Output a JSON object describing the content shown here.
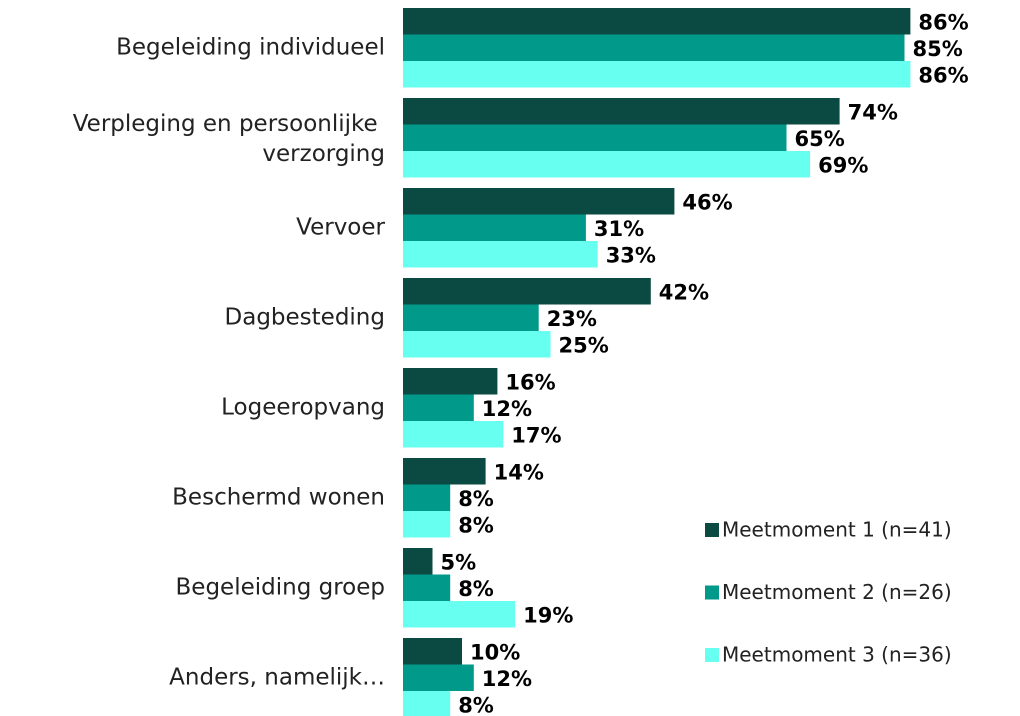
{
  "chart_data": {
    "type": "barh",
    "categories": [
      "Begeleiding individueel",
      "Verpleging en persoonlijke verzorging",
      "Vervoer",
      "Dagbesteding",
      "Logeeropvang",
      "Beschermd wonen",
      "Begeleiding groep",
      "Anders, namelijk…"
    ],
    "series": [
      {
        "name": "Meetmoment 1 (n=41)",
        "color": "#0b4a42",
        "values": [
          86,
          74,
          46,
          42,
          16,
          14,
          5,
          10
        ],
        "value_labels": [
          "86%",
          "74%",
          "46%",
          "42%",
          "16%",
          "14%",
          "5%",
          "10%"
        ]
      },
      {
        "name": "Meetmoment 2 (n=26)",
        "color": "#00998a",
        "values": [
          85,
          65,
          31,
          23,
          12,
          8,
          8,
          12
        ],
        "value_labels": [
          "85%",
          "65%",
          "31%",
          "23%",
          "12%",
          "8%",
          "8%",
          "12%"
        ]
      },
      {
        "name": "Meetmoment 3 (n=36)",
        "color": "#66fff0",
        "values": [
          86,
          69,
          33,
          25,
          17,
          8,
          19,
          8
        ],
        "value_labels": [
          "86%",
          "69%",
          "33%",
          "25%",
          "17%",
          "8%",
          "19%",
          "8%"
        ]
      }
    ],
    "legend": "lower right"
  }
}
